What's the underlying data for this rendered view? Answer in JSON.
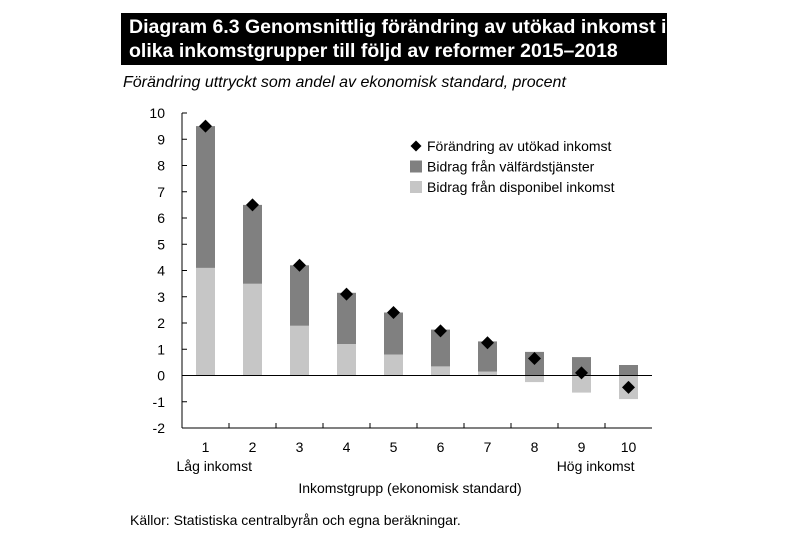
{
  "title_line1": "Diagram 6.3 Genomsnittlig förändring av utökad inkomst i",
  "title_line2": "olika inkomstgrupper till följd av reformer 2015–2018",
  "subtitle": "Förändring uttryckt som andel av ekonomisk standard, procent",
  "source": "Källor: Statistiska centralbyrån och egna beräkningar.",
  "colors": {
    "dark": "#808080",
    "light": "#c6c6c6",
    "marker": "#000000"
  },
  "chart_data": {
    "type": "bar",
    "stacked": true,
    "categories": [
      "1",
      "2",
      "3",
      "4",
      "5",
      "6",
      "7",
      "8",
      "9",
      "10"
    ],
    "category_notes": {
      "first": "Låg inkomst",
      "last": "Hög inkomst"
    },
    "xlabel": "Inkomstgrupp (ekonomisk standard)",
    "ylabel": "",
    "ylim": [
      -2,
      10
    ],
    "yticks": [
      -2,
      -1,
      0,
      1,
      2,
      3,
      4,
      5,
      6,
      7,
      8,
      9,
      10
    ],
    "legend_position": "top-right",
    "series": [
      {
        "name": "Bidrag från disponibel inkomst",
        "kind": "bar",
        "color": "#c6c6c6",
        "values": [
          4.1,
          3.5,
          1.9,
          1.2,
          0.8,
          0.35,
          0.15,
          -0.25,
          -0.65,
          -0.9
        ]
      },
      {
        "name": "Bidrag från välfärdstjänster",
        "kind": "bar",
        "color": "#808080",
        "values": [
          5.4,
          3.0,
          2.3,
          1.95,
          1.6,
          1.4,
          1.15,
          0.9,
          0.7,
          0.4
        ]
      },
      {
        "name": "Förändring av utökad inkomst",
        "kind": "marker",
        "color": "#000000",
        "values": [
          9.5,
          6.5,
          4.2,
          3.1,
          2.4,
          1.7,
          1.25,
          0.65,
          0.1,
          -0.45
        ]
      }
    ]
  }
}
